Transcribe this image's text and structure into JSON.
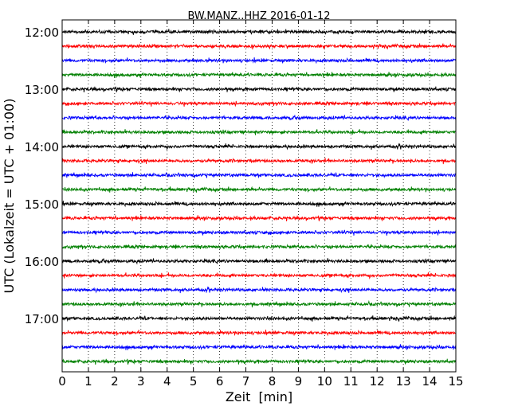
{
  "chart_data": {
    "type": "line",
    "title": "BW.MANZ..HHZ 2016-01-12",
    "xlabel": "Zeit  [min]",
    "ylabel": "UTC (Lokalzeit = UTC + 01:00)",
    "xlim": [
      0,
      15
    ],
    "x_ticks": [
      "0",
      "1",
      "2",
      "3",
      "4",
      "5",
      "6",
      "7",
      "8",
      "9",
      "10",
      "11",
      "12",
      "13",
      "14",
      "15"
    ],
    "y_ticks": [
      "12:00",
      "13:00",
      "14:00",
      "15:00",
      "16:00",
      "17:00"
    ],
    "grid": "vertical dotted at each minute",
    "trace_colors": [
      "#000000",
      "#ff0000",
      "#0000ff",
      "#008000"
    ],
    "series": [
      {
        "start": "12:00",
        "color": "#000000"
      },
      {
        "start": "12:15",
        "color": "#ff0000"
      },
      {
        "start": "12:30",
        "color": "#0000ff"
      },
      {
        "start": "12:45",
        "color": "#008000"
      },
      {
        "start": "13:00",
        "color": "#000000"
      },
      {
        "start": "13:15",
        "color": "#ff0000"
      },
      {
        "start": "13:30",
        "color": "#0000ff"
      },
      {
        "start": "13:45",
        "color": "#008000"
      },
      {
        "start": "14:00",
        "color": "#000000"
      },
      {
        "start": "14:15",
        "color": "#ff0000"
      },
      {
        "start": "14:30",
        "color": "#0000ff"
      },
      {
        "start": "14:45",
        "color": "#008000"
      },
      {
        "start": "15:00",
        "color": "#000000"
      },
      {
        "start": "15:15",
        "color": "#ff0000"
      },
      {
        "start": "15:30",
        "color": "#0000ff"
      },
      {
        "start": "15:45",
        "color": "#008000"
      },
      {
        "start": "16:00",
        "color": "#000000"
      },
      {
        "start": "16:15",
        "color": "#ff0000"
      },
      {
        "start": "16:30",
        "color": "#0000ff"
      },
      {
        "start": "16:45",
        "color": "#008000"
      },
      {
        "start": "17:00",
        "color": "#000000"
      },
      {
        "start": "17:15",
        "color": "#ff0000"
      },
      {
        "start": "17:30",
        "color": "#0000ff"
      },
      {
        "start": "17:45",
        "color": "#008000"
      }
    ]
  }
}
